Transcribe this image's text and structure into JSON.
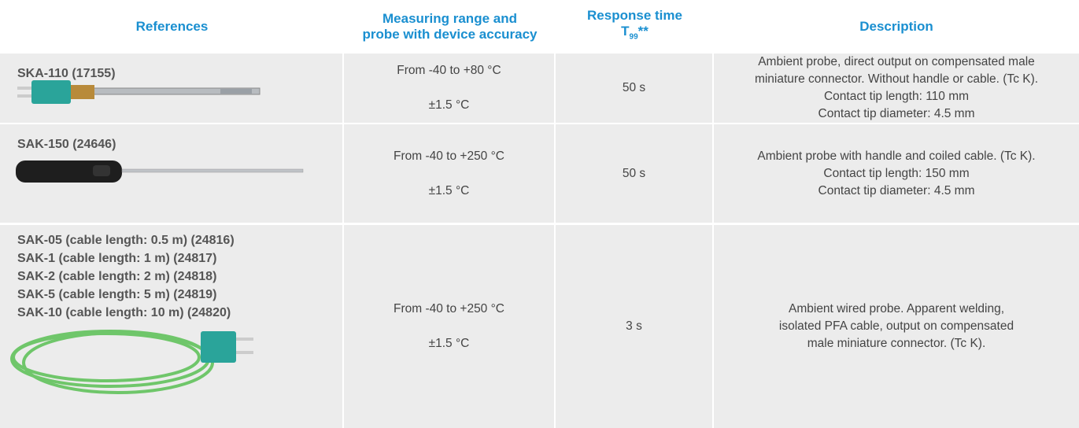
{
  "header": {
    "references": "References",
    "measuring_range": [
      "Measuring range and",
      "probe with device accuracy"
    ],
    "response_time": {
      "line1": "Response time",
      "symbol": "T",
      "subscript": "99",
      "suffix": "**"
    },
    "description": "Description"
  },
  "rows": [
    {
      "references": [
        "SKA-110 (17155)"
      ],
      "range": "From -40 to +80 °C",
      "accuracy": "±1.5 °C",
      "response": "50 s",
      "description": [
        "Ambient probe, direct output on compensated male",
        "miniature connector. Without handle or cable. (Tc K).",
        "Contact tip length: 110 mm",
        "Contact tip diameter: 4.5 mm"
      ]
    },
    {
      "references": [
        "SAK-150 (24646)"
      ],
      "range": "From -40 to +250 °C",
      "accuracy": "±1.5 °C",
      "response": "50 s",
      "description": [
        "Ambient probe with handle and coiled cable. (Tc K).",
        "Contact tip length: 150 mm",
        "Contact tip diameter: 4.5 mm"
      ]
    },
    {
      "references": [
        "SAK-05 (cable length: 0.5 m) (24816)",
        "SAK-1 (cable length: 1 m) (24817)",
        "SAK-2 (cable length: 2 m) (24818)",
        "SAK-5 (cable length: 5 m) (24819)",
        "SAK-10 (cable length: 10 m) (24820)"
      ],
      "range": "From -40 to +250 °C",
      "accuracy": "±1.5 °C",
      "response": "3 s",
      "description": [
        "Ambient wired probe. Apparent welding,",
        "isolated PFA cable, output on compensated",
        "male miniature connector. (Tc K)."
      ]
    }
  ]
}
